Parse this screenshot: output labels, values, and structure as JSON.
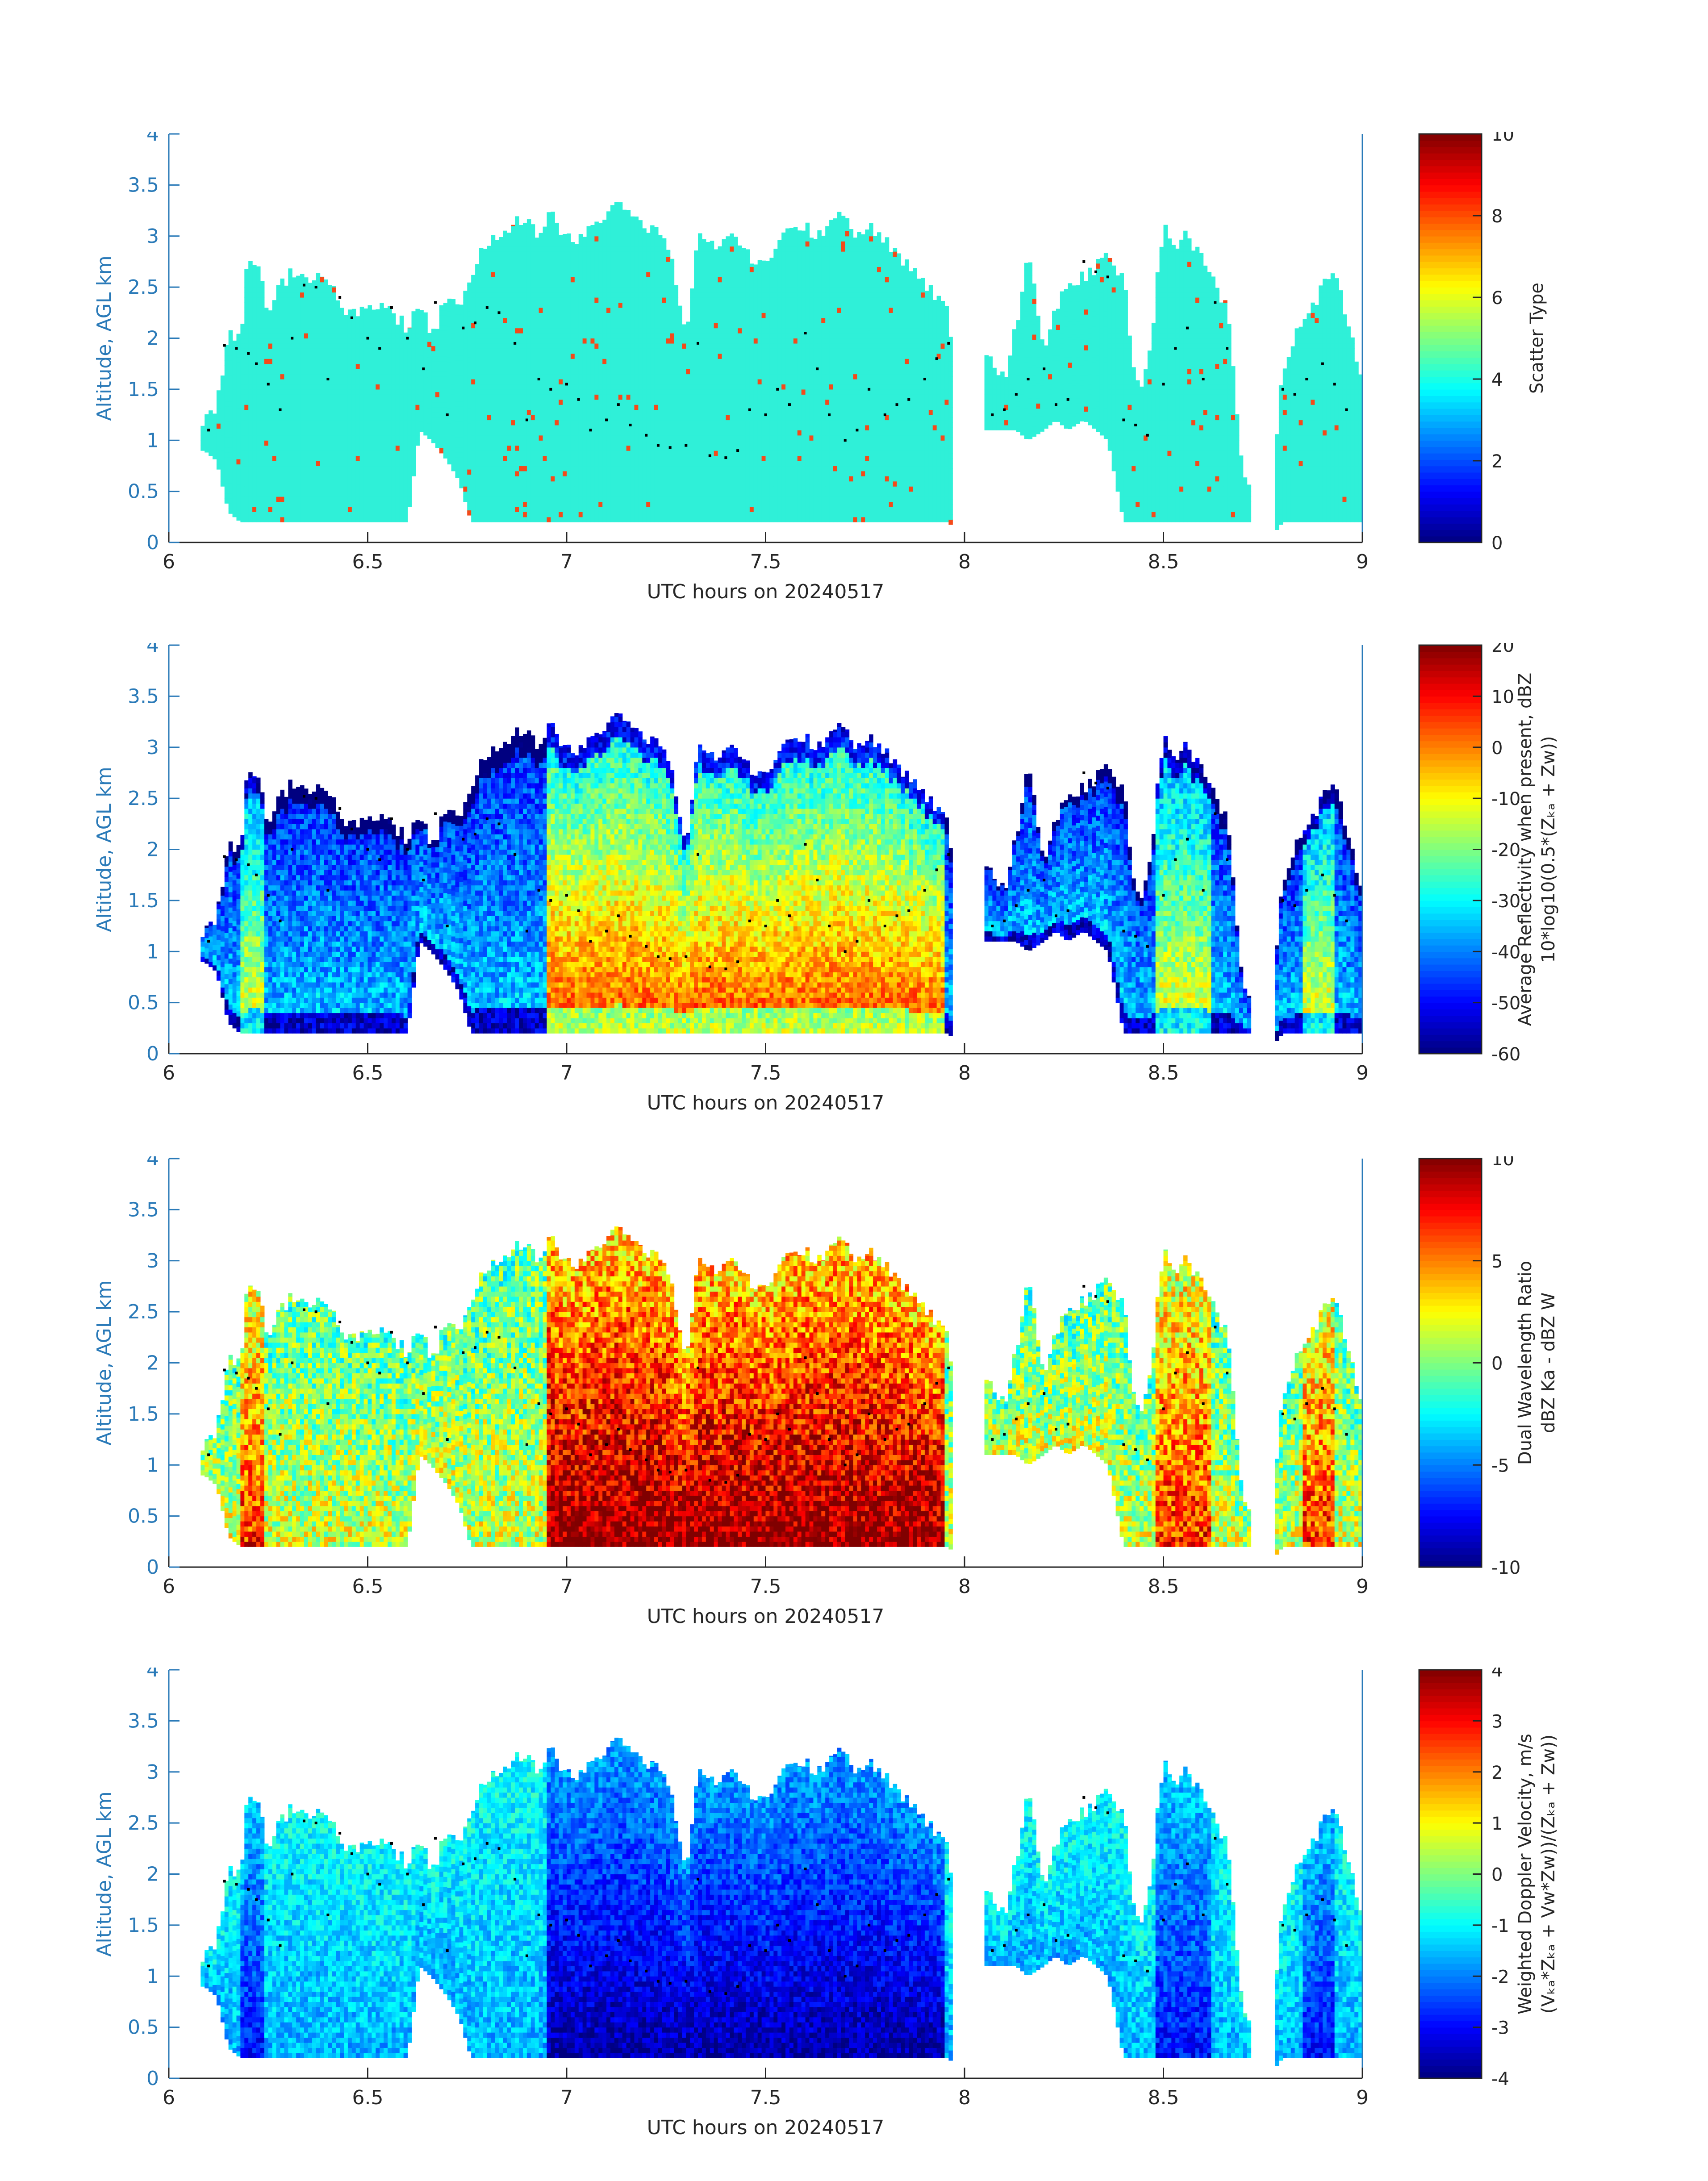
{
  "colors": {
    "axis": "#2a7ab8",
    "text": "#262626",
    "cyan_fill": "#2ff0d8",
    "orange_fill": "#f44a1a",
    "dots": "#000000"
  },
  "chart_data": [
    {
      "type": "heatmap",
      "xlabel": "UTC hours on 20240517",
      "ylabel": "Altitude, AGL km",
      "xlim": [
        6,
        9
      ],
      "ylim": [
        0,
        4
      ],
      "xticks": [
        "6",
        "6.5",
        "7",
        "7.5",
        "8",
        "8.5",
        "9"
      ],
      "yticks": [
        "0",
        "0.5",
        "1",
        "1.5",
        "2",
        "2.5",
        "3",
        "3.5",
        "4"
      ],
      "colorbar": {
        "label_lines": [
          "Scatter Type"
        ],
        "range": [
          0,
          10
        ],
        "ticks": [
          "0",
          "2",
          "4",
          "6",
          "8",
          "10"
        ],
        "colormap": "jet"
      },
      "field": "scatter_type"
    },
    {
      "type": "heatmap",
      "xlabel": "UTC hours on 20240517",
      "ylabel": "Altitude, AGL km",
      "xlim": [
        6,
        9
      ],
      "ylim": [
        0,
        4
      ],
      "xticks": [
        "6",
        "6.5",
        "7",
        "7.5",
        "8",
        "8.5",
        "9"
      ],
      "yticks": [
        "0",
        "0.5",
        "1",
        "1.5",
        "2",
        "2.5",
        "3",
        "3.5",
        "4"
      ],
      "colorbar": {
        "label_lines": [
          "Average Reflectivity when present, dBZ",
          "10*log10(0.5*(Zₖₐ + Zᴡ))"
        ],
        "range": [
          -60,
          20
        ],
        "ticks": [
          "-60",
          "-50",
          "-40",
          "-30",
          "-20",
          "-10",
          "0",
          "10",
          "20"
        ],
        "colormap": "jet"
      },
      "field": "reflectivity"
    },
    {
      "type": "heatmap",
      "xlabel": "UTC hours on 20240517",
      "ylabel": "Altitude, AGL km",
      "xlim": [
        6,
        9
      ],
      "ylim": [
        0,
        4
      ],
      "xticks": [
        "6",
        "6.5",
        "7",
        "7.5",
        "8",
        "8.5",
        "9"
      ],
      "yticks": [
        "0",
        "0.5",
        "1",
        "1.5",
        "2",
        "2.5",
        "3",
        "3.5",
        "4"
      ],
      "colorbar": {
        "label_lines": [
          "Dual Wavelength Ratio",
          "dBZ Ka - dBZ W"
        ],
        "range": [
          -10,
          10
        ],
        "ticks": [
          "-10",
          "-5",
          "0",
          "5",
          "10"
        ],
        "colormap": "jet"
      },
      "field": "dwr"
    },
    {
      "type": "heatmap",
      "xlabel": "UTC hours on 20240517",
      "ylabel": "Altitude, AGL km",
      "xlim": [
        6,
        9
      ],
      "ylim": [
        0,
        4
      ],
      "xticks": [
        "6",
        "6.5",
        "7",
        "7.5",
        "8",
        "8.5",
        "9"
      ],
      "yticks": [
        "0",
        "0.5",
        "1",
        "1.5",
        "2",
        "2.5",
        "3",
        "3.5",
        "4"
      ],
      "colorbar": {
        "label_lines": [
          "Weighted Doppler Velocity, m/s",
          "(Vₖₐ*Zₖₐ + Vᴡ*Zᴡ))/(Zₖₐ + Zᴡ))"
        ],
        "range": [
          -4,
          4
        ],
        "ticks": [
          "-4",
          "-3",
          "-2",
          "-1",
          "0",
          "1",
          "2",
          "3",
          "4"
        ],
        "colormap": "jet"
      },
      "field": "velocity"
    }
  ],
  "cloud_profile": {
    "x": [
      6.09,
      6.12,
      6.15,
      6.18,
      6.2,
      6.22,
      6.25,
      6.28,
      6.3,
      6.33,
      6.36,
      6.4,
      6.43,
      6.46,
      6.5,
      6.53,
      6.56,
      6.6,
      6.63,
      6.66,
      6.7,
      6.73,
      6.76,
      6.8,
      6.83,
      6.86,
      6.9,
      6.93,
      6.96,
      7.0,
      7.03,
      7.06,
      7.1,
      7.13,
      7.16,
      7.2,
      7.23,
      7.26,
      7.3,
      7.33,
      7.36,
      7.4,
      7.43,
      7.46,
      7.5,
      7.53,
      7.56,
      7.6,
      7.63,
      7.66,
      7.7,
      7.73,
      7.76,
      7.8,
      7.83,
      7.86,
      7.9,
      7.93,
      7.96,
      8.0,
      8.03,
      8.06,
      8.1,
      8.13,
      8.16,
      8.2,
      8.23,
      8.26,
      8.3,
      8.33,
      8.36,
      8.4,
      8.43,
      8.46,
      8.5,
      8.53,
      8.56,
      8.6,
      8.63,
      8.66,
      8.7,
      8.73,
      8.76,
      8.8,
      8.83,
      8.86,
      8.9,
      8.93,
      8.96,
      9.0
    ],
    "top_km": [
      1.2,
      1.3,
      2.1,
      2.0,
      2.85,
      2.7,
      2.3,
      2.55,
      2.6,
      2.65,
      2.55,
      2.6,
      2.4,
      2.2,
      2.3,
      2.35,
      2.25,
      2.1,
      2.4,
      2.0,
      2.4,
      2.3,
      2.6,
      2.95,
      3.0,
      3.1,
      3.2,
      3.0,
      3.25,
      2.95,
      3.0,
      3.1,
      3.2,
      3.3,
      3.2,
      3.1,
      3.0,
      2.9,
      2.0,
      3.0,
      2.9,
      3.0,
      2.95,
      2.8,
      2.7,
      2.9,
      3.1,
      3.1,
      3.0,
      3.1,
      3.2,
      3.0,
      3.1,
      2.95,
      2.85,
      2.7,
      2.5,
      2.4,
      2.3,
      0.0,
      1.9,
      1.8,
      1.6,
      2.1,
      2.8,
      1.9,
      2.3,
      2.5,
      2.6,
      2.7,
      2.8,
      2.6,
      1.5,
      1.7,
      3.1,
      2.9,
      3.0,
      2.8,
      2.5,
      2.3,
      0.6,
      0.4,
      0.0,
      1.7,
      2.0,
      2.2,
      2.5,
      2.6,
      2.2,
      1.6
    ],
    "base_km": [
      0.9,
      0.8,
      0.3,
      0.2,
      0.2,
      0.2,
      0.2,
      0.2,
      0.2,
      0.2,
      0.2,
      0.2,
      0.2,
      0.2,
      0.2,
      0.2,
      0.2,
      0.2,
      1.1,
      1.0,
      0.8,
      0.6,
      0.2,
      0.2,
      0.2,
      0.2,
      0.2,
      0.2,
      0.2,
      0.2,
      0.2,
      0.2,
      0.2,
      0.2,
      0.2,
      0.2,
      0.2,
      0.2,
      0.2,
      0.2,
      0.2,
      0.2,
      0.2,
      0.2,
      0.2,
      0.2,
      0.2,
      0.2,
      0.2,
      0.2,
      0.2,
      0.2,
      0.2,
      0.2,
      0.2,
      0.2,
      0.2,
      0.2,
      0.2,
      0.0,
      1.1,
      1.1,
      1.1,
      1.1,
      1.0,
      1.1,
      1.2,
      1.1,
      1.2,
      1.1,
      1.0,
      0.2,
      0.2,
      0.2,
      0.2,
      0.2,
      0.2,
      0.2,
      0.2,
      0.2,
      0.2,
      0.2,
      0.0,
      0.2,
      0.2,
      0.2,
      0.2,
      0.2,
      0.2,
      0.2
    ]
  },
  "dots": {
    "x": [
      6.1,
      6.14,
      6.17,
      6.2,
      6.22,
      6.25,
      6.28,
      6.31,
      6.34,
      6.37,
      6.4,
      6.43,
      6.46,
      6.5,
      6.53,
      6.56,
      6.6,
      6.64,
      6.67,
      6.7,
      6.74,
      6.77,
      6.8,
      6.83,
      6.87,
      6.9,
      6.93,
      6.96,
      7.0,
      7.03,
      7.06,
      7.1,
      7.13,
      7.16,
      7.2,
      7.23,
      7.26,
      7.3,
      7.33,
      7.36,
      7.4,
      7.43,
      7.46,
      7.5,
      7.53,
      7.56,
      7.6,
      7.63,
      7.66,
      7.7,
      7.73,
      7.76,
      7.8,
      7.83,
      7.86,
      7.9,
      7.93,
      7.96,
      8.07,
      8.1,
      8.13,
      8.16,
      8.2,
      8.23,
      8.26,
      8.3,
      8.33,
      8.36,
      8.4,
      8.43,
      8.46,
      8.5,
      8.53,
      8.56,
      8.6,
      8.63,
      8.66,
      8.8,
      8.83,
      8.86,
      8.9,
      8.93,
      8.96
    ],
    "y": [
      1.1,
      1.93,
      1.9,
      1.85,
      1.75,
      1.55,
      1.3,
      2.0,
      2.52,
      2.5,
      1.6,
      2.4,
      2.2,
      2.0,
      1.9,
      2.3,
      2.0,
      1.7,
      2.35,
      1.25,
      2.1,
      2.15,
      2.3,
      2.25,
      1.95,
      1.2,
      1.6,
      1.5,
      1.55,
      1.4,
      1.1,
      1.2,
      1.35,
      1.15,
      1.05,
      0.95,
      0.93,
      0.95,
      1.95,
      0.85,
      0.83,
      0.9,
      1.3,
      1.25,
      1.5,
      1.35,
      2.05,
      1.7,
      1.25,
      1.0,
      1.1,
      1.5,
      1.25,
      1.35,
      1.4,
      1.6,
      1.8,
      1.95,
      1.25,
      1.3,
      1.45,
      1.6,
      1.7,
      1.35,
      1.4,
      2.75,
      2.65,
      2.6,
      1.2,
      1.15,
      1.05,
      1.55,
      1.9,
      2.1,
      1.6,
      2.35,
      1.9,
      1.5,
      1.45,
      1.6,
      1.75,
      1.55,
      1.3
    ]
  }
}
